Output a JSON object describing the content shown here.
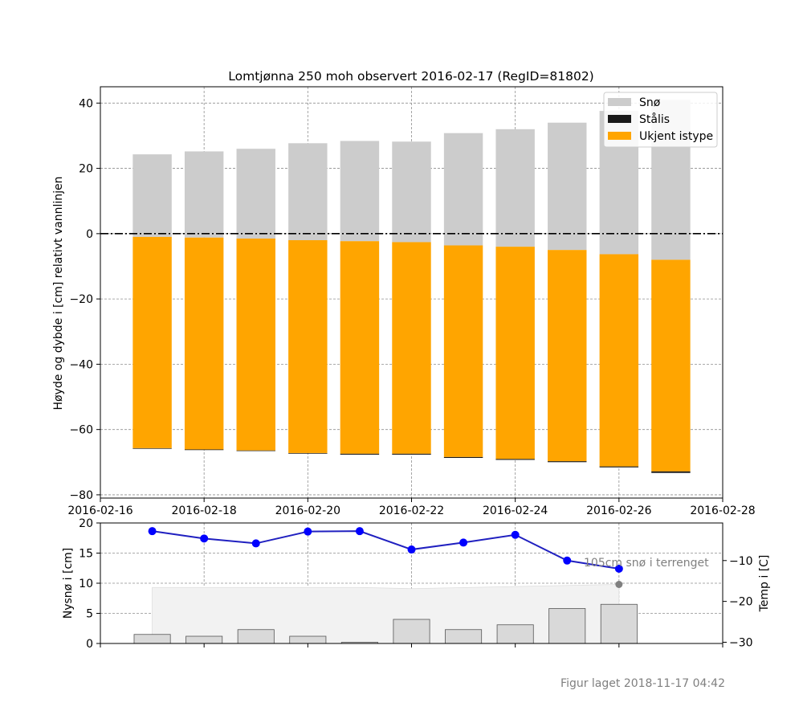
{
  "chart_data": [
    {
      "type": "bar",
      "title": "Lomtjønna 250 moh observert 2016-02-17 (RegID=81802)",
      "ylabel": "Høyde og dybde i [cm] relativt vannlinjen",
      "xlim": [
        "2016-02-16",
        "2016-02-28"
      ],
      "ylim": [
        -81,
        45
      ],
      "grid": true,
      "legend_placement": "top-right",
      "x_ticks": [
        "2016-02-16",
        "2016-02-18",
        "2016-02-20",
        "2016-02-22",
        "2016-02-24",
        "2016-02-26",
        "2016-02-28"
      ],
      "y_ticks": [
        40,
        20,
        0,
        -20,
        -40,
        -60,
        -80
      ],
      "categories": [
        "2016-02-17",
        "2016-02-18",
        "2016-02-19",
        "2016-02-20",
        "2016-02-21",
        "2016-02-22",
        "2016-02-23",
        "2016-02-24",
        "2016-02-25",
        "2016-02-26",
        "2016-02-27"
      ],
      "series": [
        {
          "name": "Snø",
          "color": "#cccccc",
          "bottom": [
            -1,
            -1.2,
            -1.5,
            -2,
            -2.3,
            -2.6,
            -3.6,
            -4,
            -5,
            -6.3,
            -8
          ],
          "top": [
            24.3,
            25.2,
            26,
            27.7,
            28.4,
            28.2,
            30.8,
            32,
            34,
            37.6,
            41
          ]
        },
        {
          "name": "Stålis",
          "color": "#1a1a1a",
          "bottom": [
            -65.8,
            -66.2,
            -66.5,
            -67.3,
            -67.7,
            -67.7,
            -68.7,
            -69.3,
            -70,
            -71.6,
            -73.3
          ],
          "top": [
            -65.7,
            -66.1,
            -66.4,
            -67.2,
            -67.4,
            -67.4,
            -68.4,
            -69,
            -69.7,
            -71.3,
            -72.8
          ]
        },
        {
          "name": "Ukjent istype",
          "color": "#ffa500",
          "bottom": [
            -65.7,
            -66.1,
            -66.4,
            -67.2,
            -67.4,
            -67.4,
            -68.4,
            -69,
            -69.7,
            -71.3,
            -72.8
          ],
          "top": [
            -1,
            -1.2,
            -1.5,
            -2,
            -2.3,
            -2.6,
            -3.6,
            -4,
            -5,
            -6.3,
            -8
          ]
        }
      ],
      "waterline": 0
    },
    {
      "type": "bar",
      "ylabel": "Nysnø i [cm]",
      "ylim": [
        0,
        20
      ],
      "y_ticks": [
        20,
        15,
        10,
        5,
        0
      ],
      "grid": true,
      "categories": [
        "2016-02-17",
        "2016-02-18",
        "2016-02-19",
        "2016-02-20",
        "2016-02-21",
        "2016-02-22",
        "2016-02-23",
        "2016-02-24",
        "2016-02-25",
        "2016-02-26"
      ],
      "series": [
        {
          "values": [
            1.5,
            1.2,
            2.3,
            1.2,
            0.2,
            4,
            2.3,
            3.1,
            5.8,
            6.5
          ],
          "color": "#d9d9d9"
        }
      ],
      "snow_depth_area": {
        "x": [
          "2016-02-17",
          "2016-02-21",
          "2016-02-22",
          "2016-02-26"
        ],
        "values": [
          9.3,
          9.3,
          9.1,
          9.8
        ],
        "color": "#f2f2f2"
      },
      "snow_depth_point": {
        "x": "2016-02-26",
        "value": 9.8,
        "color": "#808080"
      },
      "snow_depth_annotation": "105cm snø i terrenget",
      "temperature": {
        "ylabel": "Temp i [C]",
        "ylim": [
          -30.3,
          -0.8
        ],
        "y_ticks": [
          -10,
          -20,
          -30
        ],
        "x": [
          "2016-02-17",
          "2016-02-18",
          "2016-02-19",
          "2016-02-20",
          "2016-02-21",
          "2016-02-22",
          "2016-02-23",
          "2016-02-24",
          "2016-02-25",
          "2016-02-26"
        ],
        "values": [
          -2.8,
          -4.6,
          -5.8,
          -2.9,
          -2.8,
          -7.3,
          -5.6,
          -3.7,
          -10,
          -12
        ],
        "color": "#0000ff",
        "line_color": "#2020c0"
      }
    }
  ],
  "footer": "Figur laget 2018-11-17 04:42"
}
